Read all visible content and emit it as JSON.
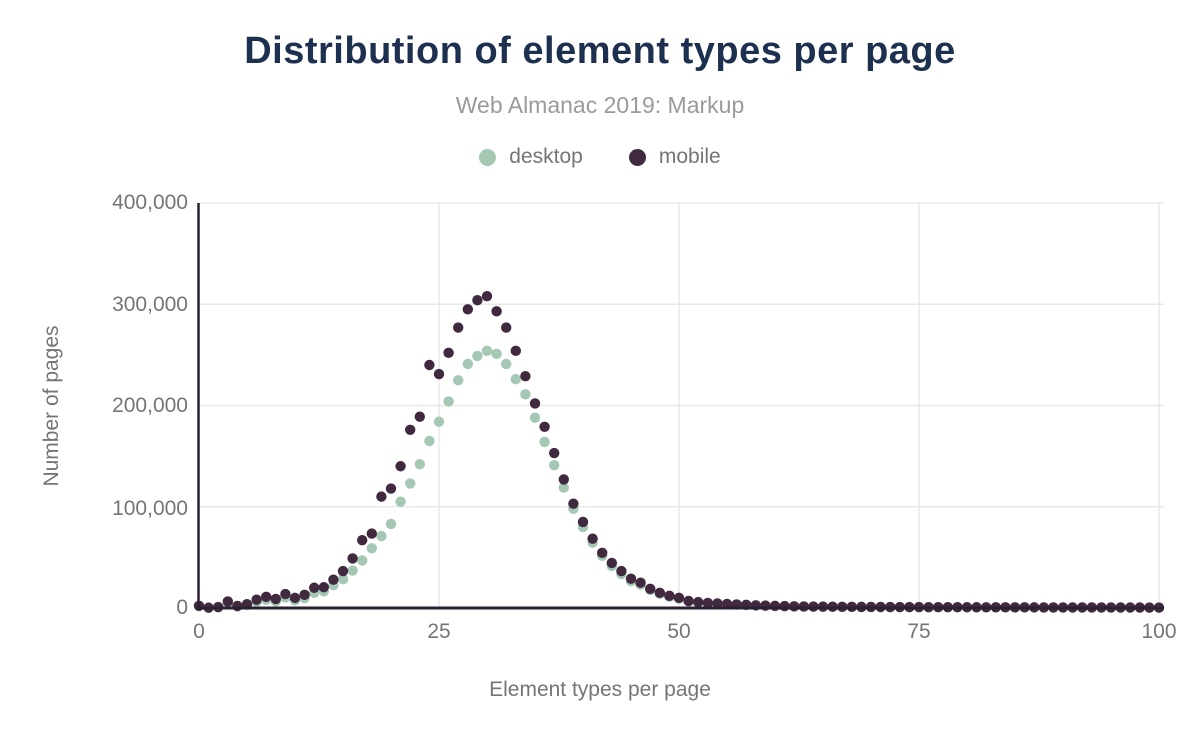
{
  "header": {
    "title": "Distribution of element types per page",
    "subtitle": "Web Almanac 2019: Markup"
  },
  "legend": [
    {
      "label": "desktop",
      "color": "#a5c8b5"
    },
    {
      "label": "mobile",
      "color": "#41293f"
    }
  ],
  "colors": {
    "title": "#1e3050",
    "subtitle": "#9a9a9a",
    "axis_text": "#757575",
    "axis_line": "#2b2130",
    "gridline": "#e8e8e8",
    "background": "#ffffff",
    "desktop": "#a5c8b5",
    "mobile": "#41293f"
  },
  "chart_data": {
    "type": "scatter",
    "title": "Distribution of element types per page",
    "subtitle": "Web Almanac 2019: Markup",
    "xlabel": "Element types per page",
    "ylabel": "Number of pages",
    "xlim": [
      0,
      100
    ],
    "ylim": [
      0,
      400000
    ],
    "x_ticks": [
      0,
      25,
      50,
      75,
      100
    ],
    "x_tick_labels": [
      "0",
      "25",
      "50",
      "75",
      "100"
    ],
    "y_ticks": [
      0,
      100000,
      200000,
      300000,
      400000
    ],
    "y_tick_labels": [
      "0",
      "100,000",
      "200,000",
      "300,000",
      "400,000"
    ],
    "grid": true,
    "legend_position": "top",
    "x_start": 0,
    "x_step": 1,
    "series": [
      {
        "name": "desktop",
        "color": "#a5c8b5",
        "values": [
          1800,
          250,
          700,
          4800,
          1500,
          2900,
          6200,
          8200,
          6800,
          10400,
          7600,
          9800,
          15000,
          16500,
          22500,
          28500,
          37000,
          47000,
          59000,
          71000,
          83000,
          105000,
          123000,
          142000,
          165000,
          184000,
          204000,
          225000,
          241000,
          249000,
          254000,
          251000,
          241000,
          226000,
          211000,
          188000,
          164000,
          141000,
          119000,
          98000,
          80000,
          64500,
          51500,
          41500,
          33500,
          26500,
          23000,
          17800,
          14000,
          11200,
          9200,
          6500,
          5400,
          4600,
          4100,
          3700,
          3200,
          2800,
          2450,
          2150,
          1900,
          1700,
          1550,
          1400,
          1300,
          1200,
          1150,
          1100,
          1050,
          1000,
          960,
          920,
          880,
          860,
          830,
          800,
          780,
          760,
          740,
          720,
          700,
          680,
          660,
          640,
          620,
          600,
          590,
          580,
          560,
          550,
          540,
          520,
          510,
          500,
          490,
          480,
          470,
          460,
          450,
          440,
          430
        ]
      },
      {
        "name": "mobile",
        "color": "#41293f",
        "values": [
          2200,
          300,
          900,
          6500,
          2000,
          3800,
          8200,
          11000,
          9000,
          13800,
          10000,
          13000,
          20000,
          20500,
          28000,
          36500,
          49000,
          67000,
          73500,
          110000,
          118000,
          140000,
          176000,
          189000,
          240000,
          231000,
          252000,
          277000,
          295000,
          304000,
          308000,
          293000,
          277000,
          254000,
          229000,
          202000,
          179000,
          153000,
          127000,
          103000,
          85000,
          68500,
          54500,
          44500,
          36500,
          29000,
          25000,
          19000,
          15000,
          12000,
          10000,
          7000,
          5800,
          5000,
          4500,
          4000,
          3500,
          3100,
          2700,
          2400,
          2100,
          1900,
          1700,
          1550,
          1450,
          1350,
          1250,
          1200,
          1150,
          1100,
          1050,
          1000,
          950,
          950,
          900,
          880,
          850,
          830,
          800,
          780,
          750,
          730,
          700,
          690,
          670,
          650,
          640,
          620,
          600,
          590,
          580,
          560,
          550,
          540,
          530,
          520,
          510,
          500,
          490,
          480,
          470
        ]
      }
    ]
  }
}
